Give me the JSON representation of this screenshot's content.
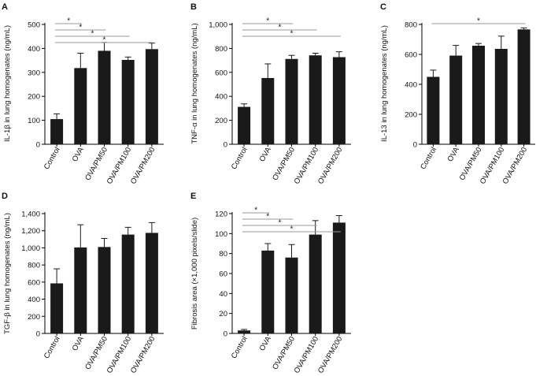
{
  "figure": {
    "background": "#ffffff",
    "bar_color": "#1a1a1a",
    "line_color": "#999999"
  },
  "chart_data": [
    {
      "panel": "A",
      "type": "bar",
      "ylabel": "IL-1β in lung homogenates (ng/mL)",
      "categories": [
        "Control",
        "OVA",
        "OVA/PM50",
        "OVA/PM100",
        "OVA/PM200"
      ],
      "values": [
        105,
        318,
        390,
        352,
        397
      ],
      "errors": [
        22,
        62,
        35,
        12,
        25
      ],
      "ylim": [
        0,
        500
      ],
      "yticks": [
        0,
        100,
        200,
        300,
        400,
        500
      ],
      "ytick_labels": [
        "0",
        "100",
        "200",
        "300",
        "400",
        "500"
      ],
      "significance": [
        {
          "from": 0,
          "to": 1,
          "label": "*"
        },
        {
          "from": 0,
          "to": 2,
          "label": "*"
        },
        {
          "from": 0,
          "to": 3,
          "label": "*"
        },
        {
          "from": 0,
          "to": 4,
          "label": "*"
        }
      ]
    },
    {
      "panel": "B",
      "type": "bar",
      "ylabel": "TNF-α in lung homogenates (ng/mL)",
      "categories": [
        "Control",
        "OVA",
        "OVA/PM50",
        "OVA/PM100",
        "OVA/PM200"
      ],
      "values": [
        312,
        553,
        712,
        742,
        727
      ],
      "errors": [
        25,
        118,
        30,
        18,
        45
      ],
      "ylim": [
        0,
        1000
      ],
      "yticks": [
        0,
        200,
        400,
        600,
        800,
        1000
      ],
      "ytick_labels": [
        "0",
        "200",
        "400",
        "600",
        "800",
        "1,000"
      ],
      "significance": [
        {
          "from": 0,
          "to": 2,
          "label": "*"
        },
        {
          "from": 0,
          "to": 3,
          "label": "*"
        },
        {
          "from": 0,
          "to": 4,
          "label": "*"
        }
      ]
    },
    {
      "panel": "C",
      "type": "bar",
      "ylabel": "IL-13 in lung homogenates (ng/mL)",
      "categories": [
        "Control",
        "OVA",
        "OVA/PM50",
        "OVA/PM100",
        "OVA/PM200"
      ],
      "values": [
        450,
        592,
        658,
        637,
        767
      ],
      "errors": [
        45,
        68,
        15,
        85,
        10
      ],
      "ylim": [
        0,
        800
      ],
      "yticks": [
        0,
        200,
        400,
        600,
        800
      ],
      "ytick_labels": [
        "0",
        "200",
        "400",
        "600",
        "800"
      ],
      "significance": [
        {
          "from": 0,
          "to": 4,
          "label": "*"
        }
      ]
    },
    {
      "panel": "D",
      "type": "bar",
      "ylabel": "TGF-β in lung homogenates (ng/mL)",
      "categories": [
        "Control",
        "OVA",
        "OVA/PM50",
        "OVA/PM100",
        "OVA/PM200"
      ],
      "values": [
        585,
        1005,
        1010,
        1155,
        1175
      ],
      "errors": [
        170,
        265,
        100,
        85,
        120
      ],
      "ylim": [
        0,
        1400
      ],
      "yticks": [
        0,
        200,
        400,
        600,
        800,
        1000,
        1200,
        1400
      ],
      "ytick_labels": [
        "0",
        "200",
        "400",
        "600",
        "800",
        "1,000",
        "1,200",
        "1,400"
      ],
      "significance": []
    },
    {
      "panel": "E",
      "type": "bar",
      "ylabel": "Fibrosis area (×1,000 pixels/slide)",
      "categories": [
        "Control",
        "OVA",
        "OVA/PM50",
        "OVA/PM100",
        "OVA/PM200"
      ],
      "values": [
        3,
        83,
        76,
        99,
        111
      ],
      "errors": [
        1,
        7,
        13,
        14,
        7
      ],
      "ylim": [
        0,
        120
      ],
      "yticks": [
        0,
        20,
        40,
        60,
        80,
        100,
        120
      ],
      "ytick_labels": [
        "0",
        "20",
        "40",
        "60",
        "80",
        "100",
        "120"
      ],
      "significance": [
        {
          "from": 0,
          "to": 1,
          "label": "*"
        },
        {
          "from": 0,
          "to": 2,
          "label": "*"
        },
        {
          "from": 0,
          "to": 3,
          "label": "*"
        },
        {
          "from": 0,
          "to": 4,
          "label": "*"
        }
      ]
    }
  ]
}
